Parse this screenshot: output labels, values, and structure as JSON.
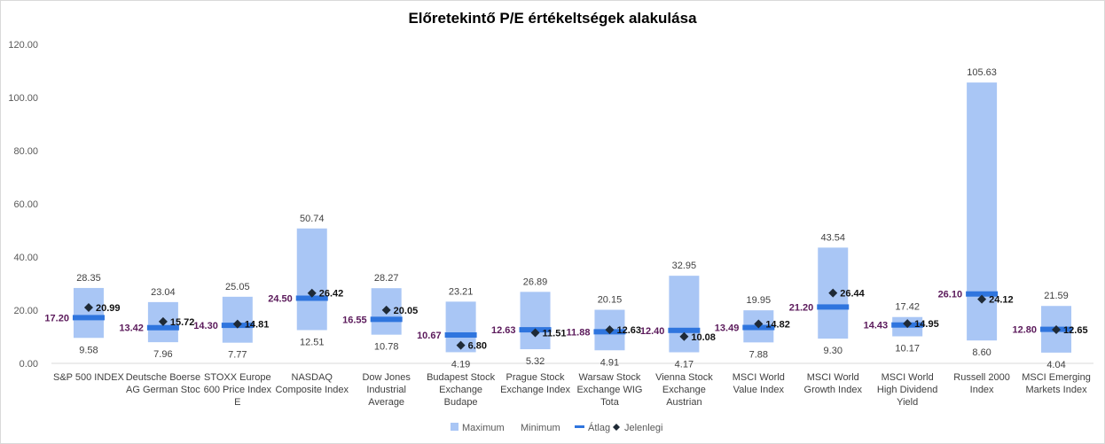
{
  "chart_data": {
    "type": "bar",
    "title": "Előretekintő P/E értékeltségek alakulása",
    "ylim": [
      0,
      120
    ],
    "yticks": [
      "0.00",
      "20.00",
      "40.00",
      "60.00",
      "80.00",
      "100.00",
      "120.00"
    ],
    "grid": false,
    "legend_position": "bottom",
    "categories": [
      [
        "S&P 500 INDEX"
      ],
      [
        "Deutsche Boerse",
        "AG German Stoc"
      ],
      [
        "STOXX Europe",
        "600 Price Index",
        "E"
      ],
      [
        "NASDAQ",
        "Composite Index"
      ],
      [
        "Dow Jones",
        "Industrial",
        "Average"
      ],
      [
        "Budapest Stock",
        "Exchange",
        "Budape"
      ],
      [
        "Prague Stock",
        "Exchange Index"
      ],
      [
        "Warsaw Stock",
        "Exchange WIG",
        "Tota"
      ],
      [
        "Vienna Stock",
        "Exchange",
        "Austrian"
      ],
      [
        "MSCI World",
        "Value Index"
      ],
      [
        "MSCI World",
        "Growth Index"
      ],
      [
        "MSCI World",
        "High Dividend",
        "Yield"
      ],
      [
        "Russell 2000",
        "Index"
      ],
      [
        "MSCI Emerging",
        "Markets Index"
      ]
    ],
    "series": [
      {
        "name": "Maximum",
        "values": [
          28.35,
          23.04,
          25.05,
          50.74,
          28.27,
          23.21,
          26.89,
          20.15,
          32.95,
          19.95,
          43.54,
          17.42,
          105.63,
          21.59
        ]
      },
      {
        "name": "Minimum",
        "values": [
          9.58,
          7.96,
          7.77,
          12.51,
          10.78,
          4.19,
          5.32,
          4.91,
          4.17,
          7.88,
          9.3,
          10.17,
          8.6,
          4.04
        ]
      },
      {
        "name": "Átlag",
        "values": [
          17.2,
          13.42,
          14.3,
          24.5,
          16.55,
          10.67,
          12.63,
          11.88,
          12.4,
          13.49,
          21.2,
          14.43,
          26.1,
          12.8
        ]
      },
      {
        "name": "Jelenlegi",
        "values": [
          20.99,
          15.72,
          14.81,
          26.42,
          20.05,
          6.8,
          11.51,
          12.63,
          10.08,
          14.82,
          26.44,
          14.95,
          24.12,
          12.65
        ]
      }
    ],
    "colors": {
      "range": "#a9c6f5",
      "average": "#2f75de",
      "current": "#1f2a36",
      "avg_label": "#5b1a5b"
    }
  }
}
